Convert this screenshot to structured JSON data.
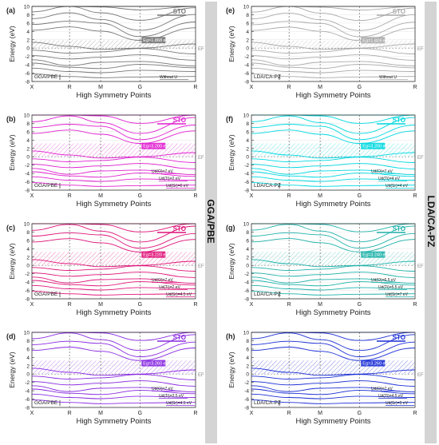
{
  "figure": {
    "side_labels": [
      "GGA/PBE",
      "LDA/CA-PZ"
    ]
  },
  "chart_data": [
    {
      "type": "line",
      "panel": "(a)",
      "method": "GGA/PBE",
      "u_params": [
        "Without U"
      ],
      "gap_label": "Eg=1.868 eV",
      "color": "#777777",
      "title": "STO",
      "ylabel": "Energy (eV)",
      "xlabel": "High Symmetry Points",
      "kpoints": [
        "X",
        "R",
        "M",
        "G",
        "R"
      ],
      "yticks": [
        -8,
        -6,
        -4,
        -2,
        0,
        2,
        4,
        6,
        8,
        10
      ],
      "ylim": [
        -8,
        10
      ],
      "fermi_label": "EF",
      "gap": [
        0,
        1.87
      ]
    },
    {
      "type": "line",
      "panel": "(b)",
      "method": "GGA/PBE",
      "u_params": [
        "Ud(O)=7 eV",
        "Ud(Ti)=2 eV",
        "Ud(Sr)=6 eV"
      ],
      "gap_label": "Eg=3.200 eV",
      "color": "#e020d0",
      "title": "STO",
      "ylabel": "Energy (eV)",
      "xlabel": "High Symmetry Points",
      "kpoints": [
        "X",
        "R",
        "M",
        "G",
        "R"
      ],
      "yticks": [
        -8,
        -6,
        -4,
        -2,
        0,
        2,
        4,
        6,
        8,
        10
      ],
      "ylim": [
        -8,
        10
      ],
      "fermi_label": "EF",
      "gap": [
        0,
        3.2
      ]
    },
    {
      "type": "line",
      "panel": "(c)",
      "method": "GGA/PBE",
      "u_params": [
        "Ud(O)=7 eV",
        "Ud(Ti)=2 eV",
        "Ud(Sr)=4.5 eV"
      ],
      "gap_label": "Eg=3.220 eV",
      "color": "#e0157a",
      "title": "STO",
      "ylabel": "Energy (eV)",
      "xlabel": "High Symmetry Points",
      "kpoints": [
        "X",
        "R",
        "M",
        "G",
        "R"
      ],
      "yticks": [
        -8,
        -6,
        -4,
        -2,
        0,
        2,
        4,
        6,
        8,
        10
      ],
      "ylim": [
        -8,
        10
      ],
      "fermi_label": "EF",
      "gap": [
        0,
        3.22
      ]
    },
    {
      "type": "line",
      "panel": "(d)",
      "method": "GGA/PBE",
      "u_params": [
        "Ud(O)=7 eV",
        "Ud(Ti)=3.5 eV",
        "Ud(Sr)=4.5 eV"
      ],
      "gap_label": "Eg=3.260 eV",
      "color": "#8a2be2",
      "title": "STO",
      "ylabel": "Energy (eV)",
      "xlabel": "High Symmetry Points",
      "kpoints": [
        "X",
        "R",
        "M",
        "G",
        "R"
      ],
      "yticks": [
        -8,
        -6,
        -4,
        -2,
        0,
        2,
        4,
        6,
        8,
        10
      ],
      "ylim": [
        -8,
        10
      ],
      "fermi_label": "EF",
      "gap": [
        0,
        3.26
      ]
    },
    {
      "type": "line",
      "panel": "(e)",
      "method": "LDA/CA-PZ",
      "u_params": [
        "Without U"
      ],
      "gap_label": "Eg=1.824 eV",
      "color": "#aaaaaa",
      "title": "STO",
      "ylabel": "Energy (eV)",
      "xlabel": "High Symmetry Points",
      "kpoints": [
        "X",
        "R",
        "M",
        "G",
        "R"
      ],
      "yticks": [
        -8,
        -6,
        -4,
        -2,
        0,
        2,
        4,
        6,
        8,
        10
      ],
      "ylim": [
        -8,
        10
      ],
      "fermi_label": "EF",
      "gap": [
        0,
        1.82
      ]
    },
    {
      "type": "line",
      "panel": "(f)",
      "method": "LDA/CA-PZ",
      "u_params": [
        "Ud(O)=7 eV",
        "Ud(Ti)=4 eV",
        "Ud(Sr)=4 eV"
      ],
      "gap_label": "Eg=3.200 eV",
      "color": "#00d8e0",
      "title": "STO",
      "ylabel": "Energy (eV)",
      "xlabel": "High Symmetry Points",
      "kpoints": [
        "X",
        "R",
        "M",
        "G",
        "R"
      ],
      "yticks": [
        -8,
        -6,
        -4,
        -2,
        0,
        2,
        4,
        6,
        8,
        10
      ],
      "ylim": [
        -8,
        10
      ],
      "fermi_label": "EF",
      "gap": [
        0,
        3.2
      ]
    },
    {
      "type": "line",
      "panel": "(g)",
      "method": "LDA/CA-PZ",
      "u_params": [
        "Ud(O)=6.5 eV",
        "Ud(Ti)=5.5 eV",
        "Ud(Sr)=7 eV"
      ],
      "gap_label": "Eg=3.240 eV",
      "color": "#20b2aa",
      "title": "STO",
      "ylabel": "Energy (eV)",
      "xlabel": "High Symmetry Points",
      "kpoints": [
        "X",
        "R",
        "M",
        "G",
        "R"
      ],
      "yticks": [
        -8,
        -6,
        -4,
        -2,
        0,
        2,
        4,
        6,
        8,
        10
      ],
      "ylim": [
        -8,
        10
      ],
      "fermi_label": "EF",
      "gap": [
        0,
        3.24
      ]
    },
    {
      "type": "line",
      "panel": "(h)",
      "method": "LDA/CA-PZ",
      "u_params": [
        "Ud(O)=7 eV",
        "Ud(Ti)=4.5 eV",
        "Ud(Sr)=5 eV"
      ],
      "gap_label": "Eg=3.260 eV",
      "color": "#1c2fd6",
      "title": "STO",
      "ylabel": "Energy (eV)",
      "xlabel": "High Symmetry Points",
      "kpoints": [
        "X",
        "R",
        "M",
        "G",
        "R"
      ],
      "yticks": [
        -8,
        -6,
        -4,
        -2,
        0,
        2,
        4,
        6,
        8,
        10
      ],
      "ylim": [
        -8,
        10
      ],
      "fermi_label": "EF",
      "gap": [
        0,
        3.26
      ]
    }
  ]
}
